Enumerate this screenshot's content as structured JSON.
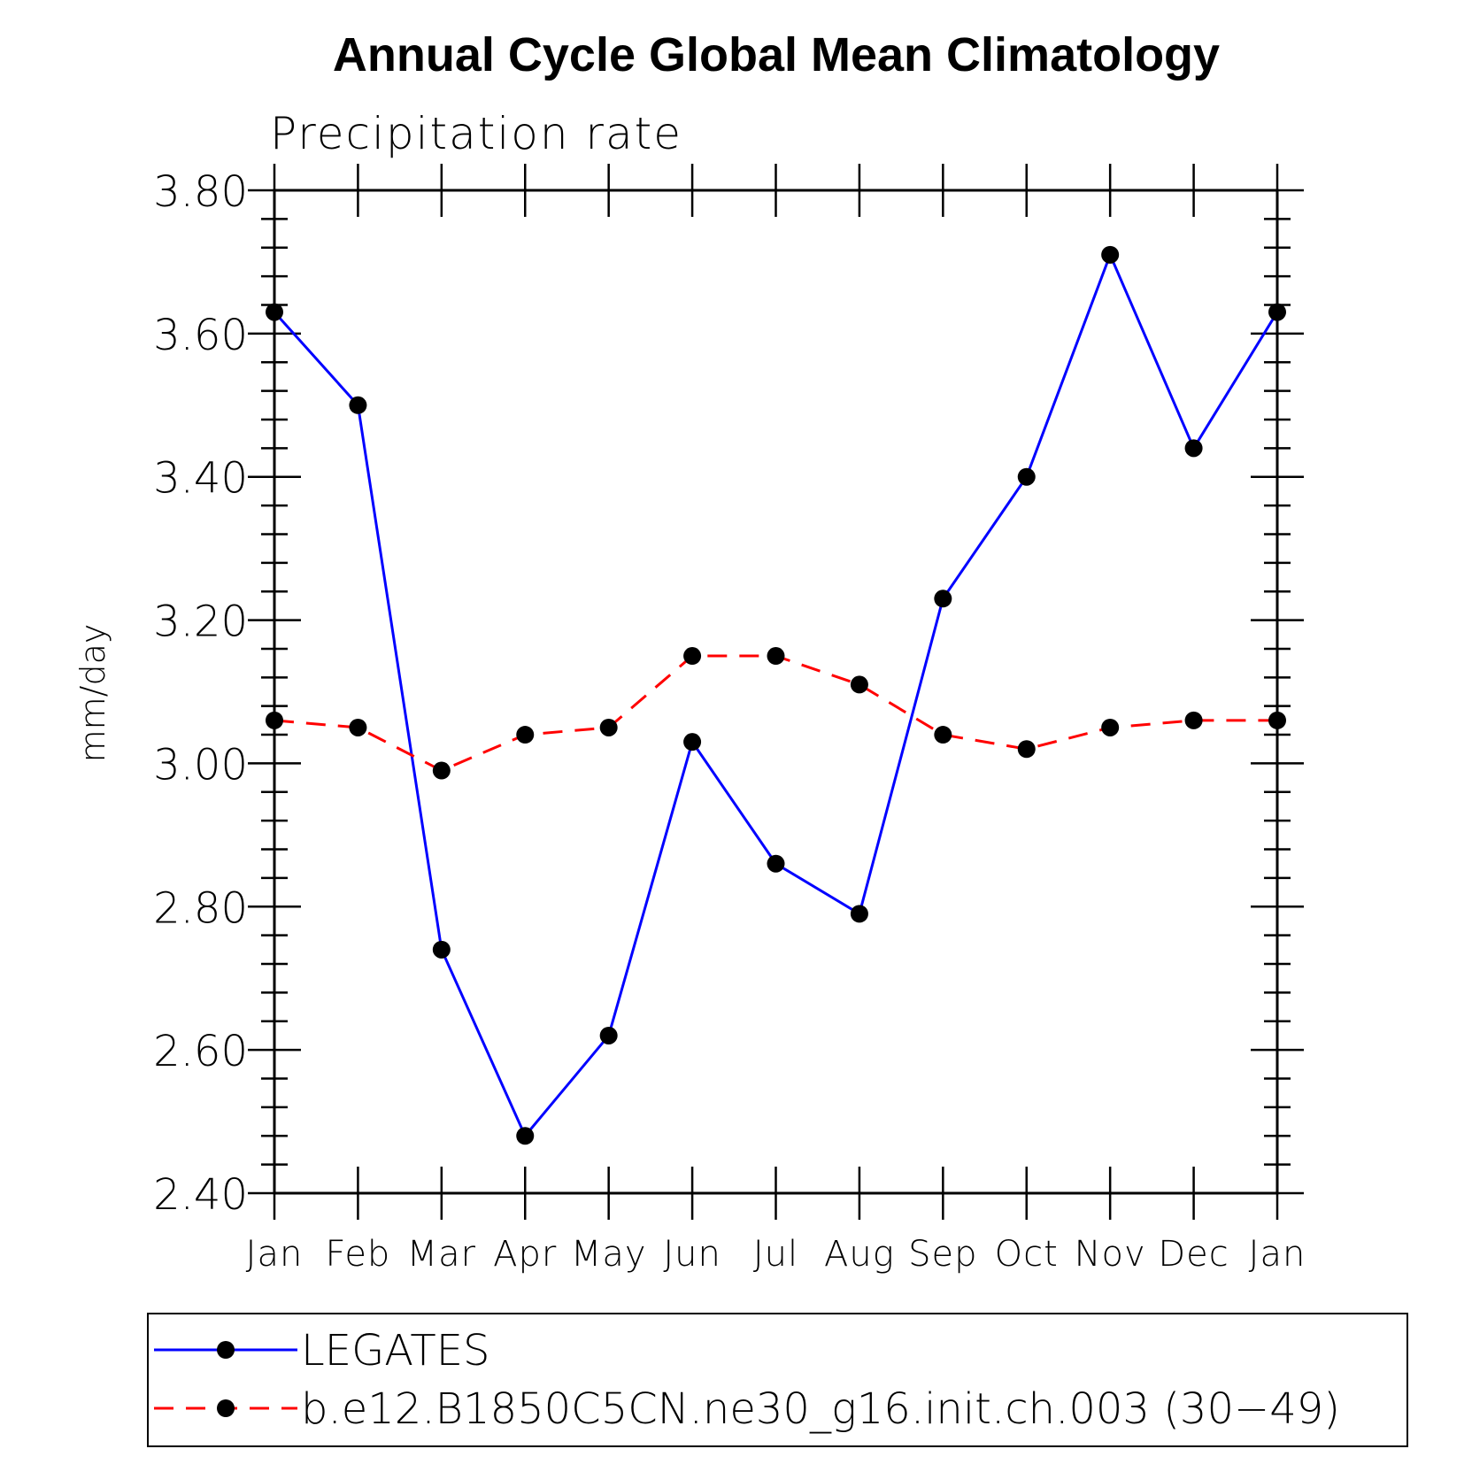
{
  "chart_data": {
    "type": "line",
    "title": "Annual Cycle Global Mean Climatology",
    "subtitle": "Precipitation rate",
    "xlabel": "",
    "ylabel": "mm/day",
    "categories": [
      "Jan",
      "Feb",
      "Mar",
      "Apr",
      "May",
      "Jun",
      "Jul",
      "Aug",
      "Sep",
      "Oct",
      "Nov",
      "Dec",
      "Jan"
    ],
    "ylim": [
      2.4,
      3.8
    ],
    "yticks": [
      "2.40",
      "2.60",
      "2.80",
      "3.00",
      "3.20",
      "3.40",
      "3.60",
      "3.80"
    ],
    "grid": false,
    "legend_position": "bottom",
    "series": [
      {
        "name": "LEGATES",
        "color": "#0000ff",
        "line_style": "solid",
        "marker": "filled-circle",
        "values": [
          3.63,
          3.5,
          2.74,
          2.48,
          2.62,
          3.03,
          2.86,
          2.79,
          3.23,
          3.4,
          3.71,
          3.44,
          3.63
        ]
      },
      {
        "name": "b.e12.B1850C5CN.ne30_g16.init.ch.003 (30−49)",
        "color": "#ff0000",
        "line_style": "dashed",
        "marker": "filled-circle",
        "values": [
          3.06,
          3.05,
          2.99,
          3.04,
          3.05,
          3.15,
          3.15,
          3.11,
          3.04,
          3.02,
          3.05,
          3.06,
          3.06
        ]
      }
    ]
  }
}
